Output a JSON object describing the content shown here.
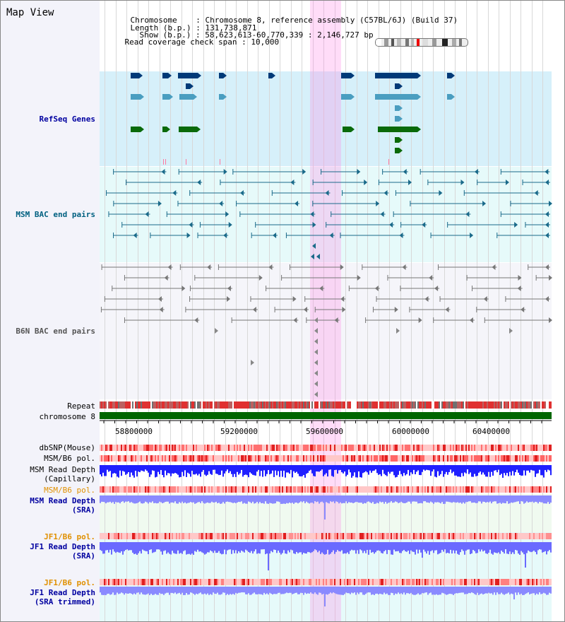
{
  "view": {
    "title": "Map View",
    "chromosome_label": "Chromosome",
    "chromosome_value": "Chromosome 8, reference assembly (C57BL/6J) (Build 37)",
    "length_label": "Length (b.p.)",
    "length_value": "131,738,871",
    "show_label": "Show (b.p.)",
    "show_value": "58,623,613-60,770,339 : 2,146,727 bp",
    "coverage_label": "Read coverage check span",
    "coverage_value": "10,000"
  },
  "tracks": {
    "refseq": "RefSeq Genes",
    "msm_bac": "MSM BAC end pairs",
    "b6n_bac": "B6N BAC end pairs",
    "repeat": "Repeat",
    "chromosome": "chromosome 8",
    "dbsnp": "dbSNP(Mouse)",
    "msm_b6_pol_1": "MSM/B6 pol.",
    "msm_read_depth_cap_1": "MSM Read Depth",
    "msm_read_depth_cap_2": "(Capillary)",
    "msm_b6_pol_2": "MSM/B6 pol.",
    "msm_read_depth_sra_1": "MSM Read Depth",
    "msm_read_depth_sra_2": "(SRA)",
    "jf1_b6_pol_1": "JF1/B6 pol.",
    "jf1_read_depth_sra_1": "JF1 Read Depth",
    "jf1_read_depth_sra_2": "(SRA)",
    "jf1_b6_pol_2": "JF1/B6 pol.",
    "jf1_read_depth_trim_1": "JF1 Read Depth",
    "jf1_read_depth_trim_2": "(SRA trimmed)"
  },
  "axis": {
    "ticks": [
      "58800000",
      "59200000",
      "59600000",
      "60000000",
      "60400000"
    ]
  },
  "colors": {
    "refseq_bg": "#d6f0fa",
    "msm_bg": "#e6fafa",
    "b6n_bg": "#f5f5fa",
    "refseq_dark": "#003a78",
    "refseq_mid": "#4a9ec0",
    "refseq_green": "#0a6a0a",
    "msm_line": "#1a6a8a",
    "b6n_line": "#777777",
    "depth_blue": "#1a1aff",
    "depth_light": "#7a7aff",
    "pol_red": "#ff8080",
    "orange_label": "#e09000",
    "navy_label": "#0000a0",
    "teal_label": "#006080",
    "chrom_green": "#006600"
  }
}
